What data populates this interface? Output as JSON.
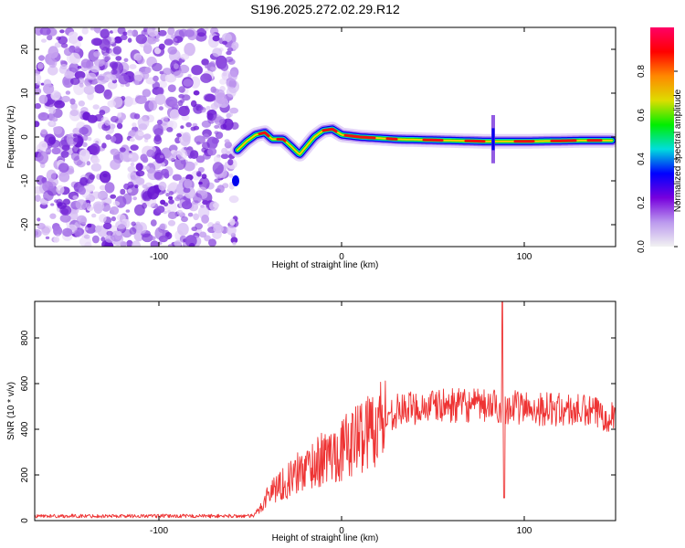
{
  "title": "S196.2025.272.02.29.R12",
  "chart_data": [
    {
      "type": "heatmap",
      "name": "spectrogram",
      "xlabel": "Height of straight line (km)",
      "ylabel": "Frequency (Hz)",
      "xlim": [
        -168,
        150
      ],
      "ylim": [
        -25,
        25
      ],
      "xticks": [
        -100,
        0,
        100
      ],
      "yticks": [
        -20,
        -10,
        0,
        10,
        20
      ],
      "noise_region_end_km": -58,
      "ridge": [
        {
          "x": -57,
          "y": -3
        },
        {
          "x": -52,
          "y": -1
        },
        {
          "x": -47,
          "y": 0.5
        },
        {
          "x": -42,
          "y": 1
        },
        {
          "x": -38,
          "y": -0.5
        },
        {
          "x": -32,
          "y": -0.5
        },
        {
          "x": -28,
          "y": -2
        },
        {
          "x": -23,
          "y": -4
        },
        {
          "x": -20,
          "y": -2.5
        },
        {
          "x": -15,
          "y": 0
        },
        {
          "x": -10,
          "y": 1.5
        },
        {
          "x": -5,
          "y": 1.8
        },
        {
          "x": 0,
          "y": 0.5
        },
        {
          "x": 10,
          "y": 0
        },
        {
          "x": 30,
          "y": -0.5
        },
        {
          "x": 60,
          "y": -0.8
        },
        {
          "x": 80,
          "y": -1
        },
        {
          "x": 100,
          "y": -1
        },
        {
          "x": 130,
          "y": -0.8
        },
        {
          "x": 148,
          "y": -0.8
        }
      ],
      "colorbar": {
        "label": "Normalized spectral amplitude",
        "range": [
          0,
          1
        ],
        "ticks": [
          "0.0",
          "0.2",
          "0.4",
          "0.6",
          "0.8"
        ],
        "tick_values": [
          0,
          0.2,
          0.4,
          0.6,
          0.8
        ],
        "colors": [
          "#f2f2f2",
          "#bb99ee",
          "#7700dd",
          "#0000ff",
          "#00dddd",
          "#00ee00",
          "#dddd00",
          "#ff8800",
          "#ff0000",
          "#ff0066"
        ]
      }
    },
    {
      "type": "line",
      "name": "snr",
      "xlabel": "Height of straight line (km)",
      "ylabel": "SNR (10 * v/v)",
      "xlim": [
        -168,
        150
      ],
      "ylim": [
        0,
        960
      ],
      "xticks": [
        -100,
        0,
        100
      ],
      "yticks": [
        0,
        200,
        400,
        600,
        800
      ],
      "color": "#ee3333",
      "envelope": [
        {
          "x": -168,
          "y": 20
        },
        {
          "x": -48,
          "y": 20
        },
        {
          "x": -44,
          "y": 60
        },
        {
          "x": -40,
          "y": 120
        },
        {
          "x": -35,
          "y": 150
        },
        {
          "x": -30,
          "y": 170
        },
        {
          "x": -25,
          "y": 200
        },
        {
          "x": -20,
          "y": 230
        },
        {
          "x": -15,
          "y": 250
        },
        {
          "x": -10,
          "y": 270
        },
        {
          "x": -5,
          "y": 290
        },
        {
          "x": 0,
          "y": 310
        },
        {
          "x": 5,
          "y": 340
        },
        {
          "x": 10,
          "y": 370
        },
        {
          "x": 15,
          "y": 400
        },
        {
          "x": 20,
          "y": 430
        },
        {
          "x": 25,
          "y": 460
        },
        {
          "x": 30,
          "y": 480
        },
        {
          "x": 40,
          "y": 495
        },
        {
          "x": 60,
          "y": 505
        },
        {
          "x": 85,
          "y": 500
        },
        {
          "x": 110,
          "y": 490
        },
        {
          "x": 130,
          "y": 480
        },
        {
          "x": 150,
          "y": 460
        }
      ],
      "spike": [
        {
          "x": 88,
          "y": 960
        },
        {
          "x": 89,
          "y": 100
        }
      ]
    }
  ]
}
